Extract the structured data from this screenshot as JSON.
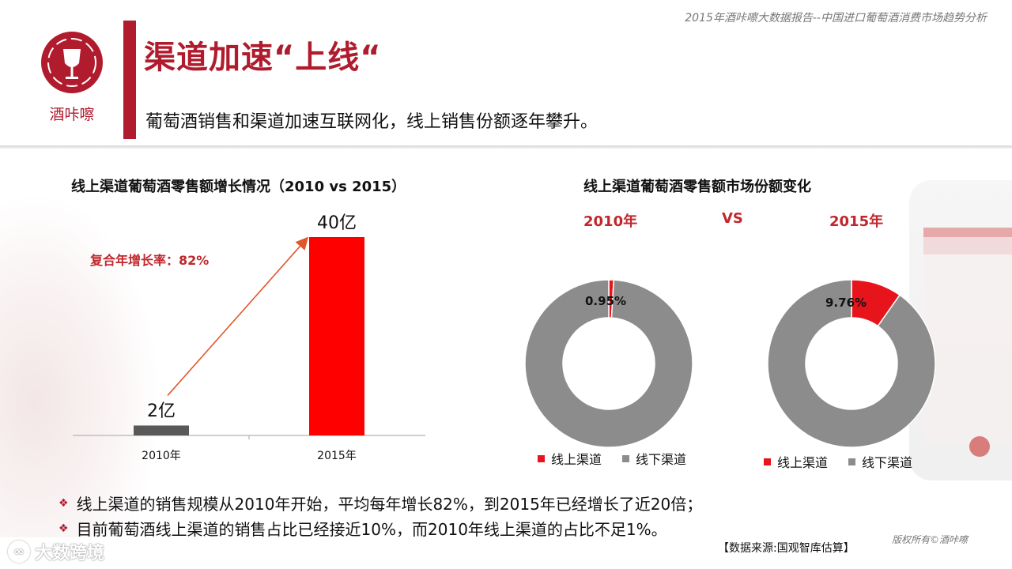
{
  "header": {
    "report_title": "2015年酒咔嚓大数据报告--中国进口葡萄酒消费市场趋势分析",
    "logo_text": "酒咔嚓",
    "main_title": "渠道加速“上线“",
    "subtitle": "葡萄酒销售和渠道加速互联网化，线上销售份额逐年攀升。"
  },
  "colors": {
    "brand": "#b01c2e",
    "bar_2015": "#ff0000",
    "bar_2010": "#595959",
    "online": "#e8141c",
    "offline": "#8c8c8c"
  },
  "chart_data": [
    {
      "type": "bar",
      "title": "线上渠道葡萄酒零售额增长情况（2010  vs 2015）",
      "categories": [
        "2010年",
        "2015年"
      ],
      "values": [
        2,
        40
      ],
      "value_labels": [
        "2亿",
        "40亿"
      ],
      "unit": "亿",
      "ylim": [
        0,
        40
      ],
      "annotation": "复合年增长率：82%"
    },
    {
      "type": "pie",
      "variant": "donut",
      "title": "线上渠道葡萄酒零售额市场份额变化",
      "subtitle_year": "2010年",
      "slices": [
        {
          "label": "线上渠道",
          "value": 0.95,
          "display": "0.95%"
        },
        {
          "label": "线下渠道",
          "value": 99.05
        }
      ]
    },
    {
      "type": "pie",
      "variant": "donut",
      "subtitle_year": "2015年",
      "slices": [
        {
          "label": "线上渠道",
          "value": 9.76,
          "display": "9.76%"
        },
        {
          "label": "线下渠道",
          "value": 90.24
        }
      ]
    }
  ],
  "compare": {
    "vs": "VS"
  },
  "bullets": [
    "线上渠道的销售规模从2010年开始，平均每年增长82%，到2015年已经增长了近20倍；",
    "目前葡萄酒线上渠道的销售占比已经接近10%，而2010年线上渠道的占比不足1%。"
  ],
  "footer": {
    "source": "【数据来源:国观智库估算】",
    "copyright": "版权所有©酒咔嚓",
    "watermark": "大数跨境"
  }
}
